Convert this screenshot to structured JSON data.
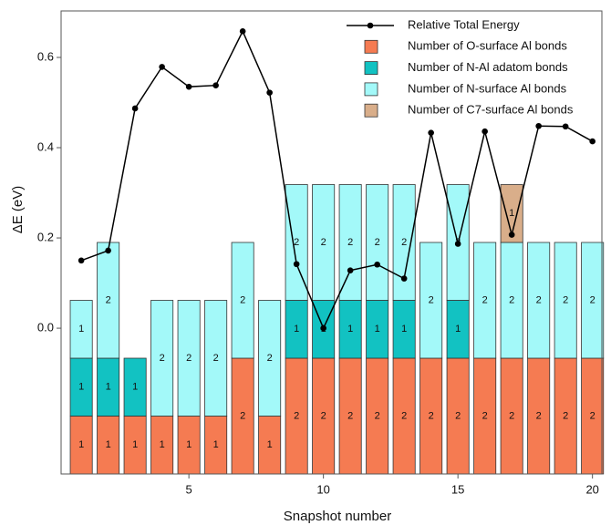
{
  "chart_data": {
    "type": "bar",
    "xlabel": "Snapshot number",
    "ylabel": "ΔE (eV)",
    "x": [
      1,
      2,
      3,
      4,
      5,
      6,
      7,
      8,
      9,
      10,
      11,
      12,
      13,
      14,
      15,
      16,
      17,
      18,
      19,
      20
    ],
    "xlim": [
      0.25,
      20.35
    ],
    "xticks": [
      5,
      10,
      15,
      20
    ],
    "ylim": [
      -0.323,
      0.703
    ],
    "yticks": [
      {
        "value": 0,
        "label": "0.0"
      },
      0.2,
      0.4,
      0.6
    ],
    "y2lim": [
      0,
      8
    ],
    "legend": "upper right",
    "series": [
      {
        "name": "Relative Total Energy",
        "type": "line",
        "color": "#000000",
        "values": [
          0.15,
          0.172,
          0.487,
          0.579,
          0.535,
          0.538,
          0.658,
          0.522,
          0.142,
          0.0,
          0.128,
          0.141,
          0.11,
          0.433,
          0.187,
          0.436,
          0.207,
          0.448,
          0.447,
          0.414
        ]
      },
      {
        "name": "Number of O-surface Al bonds",
        "type": "bar",
        "axis": "y2",
        "color": "#f57b52",
        "values": [
          1,
          1,
          1,
          1,
          1,
          1,
          2,
          1,
          2,
          2,
          2,
          2,
          2,
          2,
          2,
          2,
          2,
          2,
          2,
          2
        ]
      },
      {
        "name": "Number of N-Al adatom bonds",
        "type": "bar",
        "axis": "y2",
        "color": "#12c2c2",
        "values": [
          1,
          1,
          1,
          0,
          0,
          0,
          0,
          0,
          1,
          1,
          1,
          1,
          1,
          0,
          1,
          0,
          0,
          0,
          0,
          0
        ]
      },
      {
        "name": "Number of N-surface Al bonds",
        "type": "bar",
        "axis": "y2",
        "color": "#a3f9f9",
        "values": [
          1,
          2,
          0,
          2,
          2,
          2,
          2,
          2,
          2,
          2,
          2,
          2,
          2,
          2,
          2,
          2,
          2,
          2,
          2,
          2
        ]
      },
      {
        "name": "Number of C7-surface Al bonds",
        "type": "bar",
        "axis": "y2",
        "color": "#d9ae8a",
        "values": [
          0,
          0,
          0,
          0,
          0,
          0,
          0,
          0,
          0,
          0,
          0,
          0,
          0,
          0,
          0,
          0,
          1,
          0,
          0,
          0
        ]
      }
    ]
  }
}
